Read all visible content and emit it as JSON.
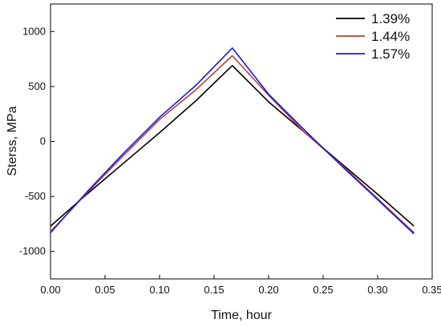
{
  "chart_data": {
    "type": "line",
    "title": "",
    "xlabel": "Time, hour",
    "ylabel": "Sterss, MPa",
    "xlim": [
      0.0,
      0.35
    ],
    "ylim": [
      -1250,
      1250
    ],
    "x_ticks": [
      0.0,
      0.05,
      0.1,
      0.15,
      0.2,
      0.25,
      0.3,
      0.35
    ],
    "x_tick_labels": [
      "0.00",
      "0.05",
      "0.10",
      "0.15",
      "0.20",
      "0.25",
      "0.30",
      "0.35"
    ],
    "y_ticks": [
      -1000,
      -500,
      0,
      500,
      1000
    ],
    "y_tick_labels": [
      "-1000",
      "-500",
      "0",
      "500",
      "1000"
    ],
    "grid": false,
    "legend_position": "top-right",
    "series": [
      {
        "name": "1.39%",
        "color": "#000000",
        "x": [
          0.0,
          0.0333,
          0.0667,
          0.1,
          0.1333,
          0.1667,
          0.2,
          0.2333,
          0.2667,
          0.3,
          0.3333
        ],
        "y": [
          -770,
          -480,
          -200,
          80,
          370,
          690,
          360,
          80,
          -200,
          -480,
          -770
        ]
      },
      {
        "name": "1.44%",
        "color": "#b5432a",
        "x": [
          0.0,
          0.0333,
          0.0667,
          0.1,
          0.1333,
          0.1667,
          0.2,
          0.2333,
          0.2667,
          0.3,
          0.3333
        ],
        "y": [
          -820,
          -470,
          -130,
          200,
          470,
          780,
          420,
          80,
          -210,
          -520,
          -830
        ]
      },
      {
        "name": "1.57%",
        "color": "#1a1ae6",
        "x": [
          0.0,
          0.0333,
          0.0667,
          0.1,
          0.1333,
          0.1667,
          0.2,
          0.2333,
          0.2667,
          0.3,
          0.3333
        ],
        "y": [
          -830,
          -460,
          -110,
          220,
          510,
          850,
          430,
          100,
          -220,
          -530,
          -840
        ]
      }
    ]
  }
}
